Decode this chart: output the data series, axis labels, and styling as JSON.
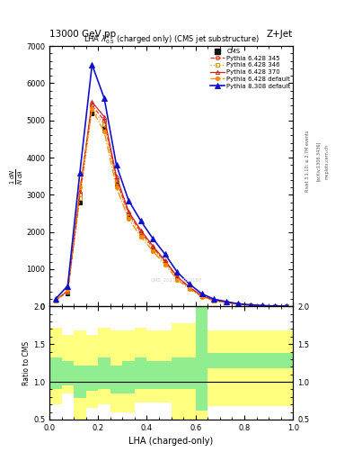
{
  "title_top": "13000 GeV pp",
  "title_right": "Z+Jet",
  "plot_title": "LHA $\\lambda^{1}_{0.5}$ (charged only) (CMS jet substructure)",
  "xlabel": "LHA (charged-only)",
  "ylabel_main": "$\\frac{1}{N}\\frac{dN}{d\\lambda}$",
  "ylabel_ratio": "Ratio to CMS",
  "right_label1": "Rivet 3.1.10; ≥ 2.7M events",
  "right_label2": "[arXiv:1306.3436]",
  "right_label3": "mcplots.cern.ch",
  "watermark": "CMS_2021_I1920187",
  "xlim": [
    0,
    1
  ],
  "ylim_main": [
    0,
    7000
  ],
  "ylim_ratio": [
    0.5,
    2.0
  ],
  "yticks_main": [
    0,
    1000,
    2000,
    3000,
    4000,
    5000,
    6000,
    7000
  ],
  "yticks_ratio": [
    0.5,
    1.0,
    1.5,
    2.0
  ],
  "bin_edges": [
    0.0,
    0.05,
    0.1,
    0.15,
    0.2,
    0.25,
    0.3,
    0.35,
    0.4,
    0.45,
    0.5,
    0.55,
    0.6,
    0.65,
    0.7,
    0.75,
    0.8,
    0.85,
    0.9,
    0.95,
    1.0
  ],
  "series": [
    {
      "label": "CMS",
      "color": "#111111",
      "marker": "s",
      "markerfacecolor": "#111111",
      "linestyle": "none",
      "linewidth": 0,
      "markersize": 3.5,
      "y": [
        150,
        350,
        2800,
        5200,
        4800,
        3300,
        2400,
        1900,
        1500,
        1150,
        750,
        480,
        270,
        155,
        100,
        55,
        30,
        15,
        8,
        3
      ]
    },
    {
      "label": "Pythia 6.428 345",
      "color": "#e8301a",
      "marker": "o",
      "markerfacecolor": "none",
      "linestyle": "--",
      "linewidth": 0.9,
      "markersize": 3.0,
      "y": [
        160,
        400,
        3000,
        5400,
        5000,
        3400,
        2500,
        2000,
        1580,
        1200,
        780,
        500,
        280,
        160,
        105,
        58,
        32,
        16,
        9,
        4
      ]
    },
    {
      "label": "Pythia 6.428 346",
      "color": "#cc9900",
      "marker": "s",
      "markerfacecolor": "none",
      "linestyle": ":",
      "linewidth": 0.9,
      "markersize": 3.0,
      "y": [
        155,
        390,
        2900,
        5300,
        4900,
        3350,
        2450,
        1950,
        1550,
        1170,
        760,
        490,
        275,
        158,
        102,
        56,
        31,
        15,
        8,
        3
      ]
    },
    {
      "label": "Pythia 6.428 370",
      "color": "#cc2222",
      "marker": "^",
      "markerfacecolor": "none",
      "linestyle": "-",
      "linewidth": 0.9,
      "markersize": 3.0,
      "y": [
        165,
        420,
        3100,
        5500,
        5100,
        3500,
        2550,
        2050,
        1620,
        1230,
        800,
        515,
        290,
        165,
        108,
        60,
        34,
        17,
        9,
        4
      ]
    },
    {
      "label": "Pythia 6.428 default",
      "color": "#ff8800",
      "marker": "o",
      "markerfacecolor": "#ff8800",
      "linestyle": "-.",
      "linewidth": 0.9,
      "markersize": 3.0,
      "y": [
        170,
        430,
        3200,
        5300,
        4700,
        3200,
        2350,
        1880,
        1480,
        1120,
        720,
        460,
        260,
        148,
        96,
        52,
        29,
        14,
        7,
        3
      ]
    },
    {
      "label": "Pythia 8.308 default",
      "color": "#1111cc",
      "marker": "^",
      "markerfacecolor": "#1111cc",
      "linestyle": "-",
      "linewidth": 1.2,
      "markersize": 4.0,
      "y": [
        200,
        550,
        3600,
        6500,
        5600,
        3800,
        2850,
        2300,
        1820,
        1400,
        920,
        600,
        340,
        195,
        128,
        70,
        40,
        20,
        10,
        5
      ]
    }
  ],
  "ratio_yellow": {
    "color": "#ffff80",
    "alpha": 1.0,
    "edges": [
      0.0,
      0.05,
      0.1,
      0.15,
      0.2,
      0.25,
      0.3,
      0.35,
      0.4,
      0.45,
      0.5,
      0.55,
      0.6,
      0.65,
      0.7,
      0.75,
      0.8,
      0.85,
      0.9,
      0.95,
      1.0
    ],
    "low": [
      0.7,
      0.85,
      0.42,
      0.65,
      0.7,
      0.6,
      0.6,
      0.72,
      0.72,
      0.72,
      0.42,
      0.42,
      0.42,
      0.68,
      0.68,
      0.68,
      0.68,
      0.68,
      0.68,
      0.68
    ],
    "high": [
      1.72,
      1.62,
      1.68,
      1.62,
      1.72,
      1.68,
      1.68,
      1.72,
      1.68,
      1.68,
      1.78,
      1.78,
      2.2,
      1.68,
      1.68,
      1.68,
      1.68,
      1.68,
      1.68,
      1.68
    ]
  },
  "ratio_green": {
    "color": "#90ee90",
    "alpha": 1.0,
    "edges": [
      0.0,
      0.05,
      0.1,
      0.15,
      0.2,
      0.25,
      0.3,
      0.35,
      0.4,
      0.45,
      0.5,
      0.55,
      0.6,
      0.65,
      0.7,
      0.75,
      0.8,
      0.85,
      0.9,
      0.95,
      1.0
    ],
    "low": [
      0.9,
      0.95,
      0.78,
      0.88,
      0.9,
      0.85,
      0.85,
      0.9,
      0.9,
      0.9,
      0.9,
      0.9,
      0.62,
      1.18,
      1.18,
      1.18,
      1.18,
      1.18,
      1.18,
      1.18
    ],
    "high": [
      1.32,
      1.28,
      1.22,
      1.22,
      1.32,
      1.22,
      1.28,
      1.32,
      1.28,
      1.28,
      1.32,
      1.32,
      2.2,
      1.38,
      1.38,
      1.38,
      1.38,
      1.38,
      1.38,
      1.38
    ]
  }
}
